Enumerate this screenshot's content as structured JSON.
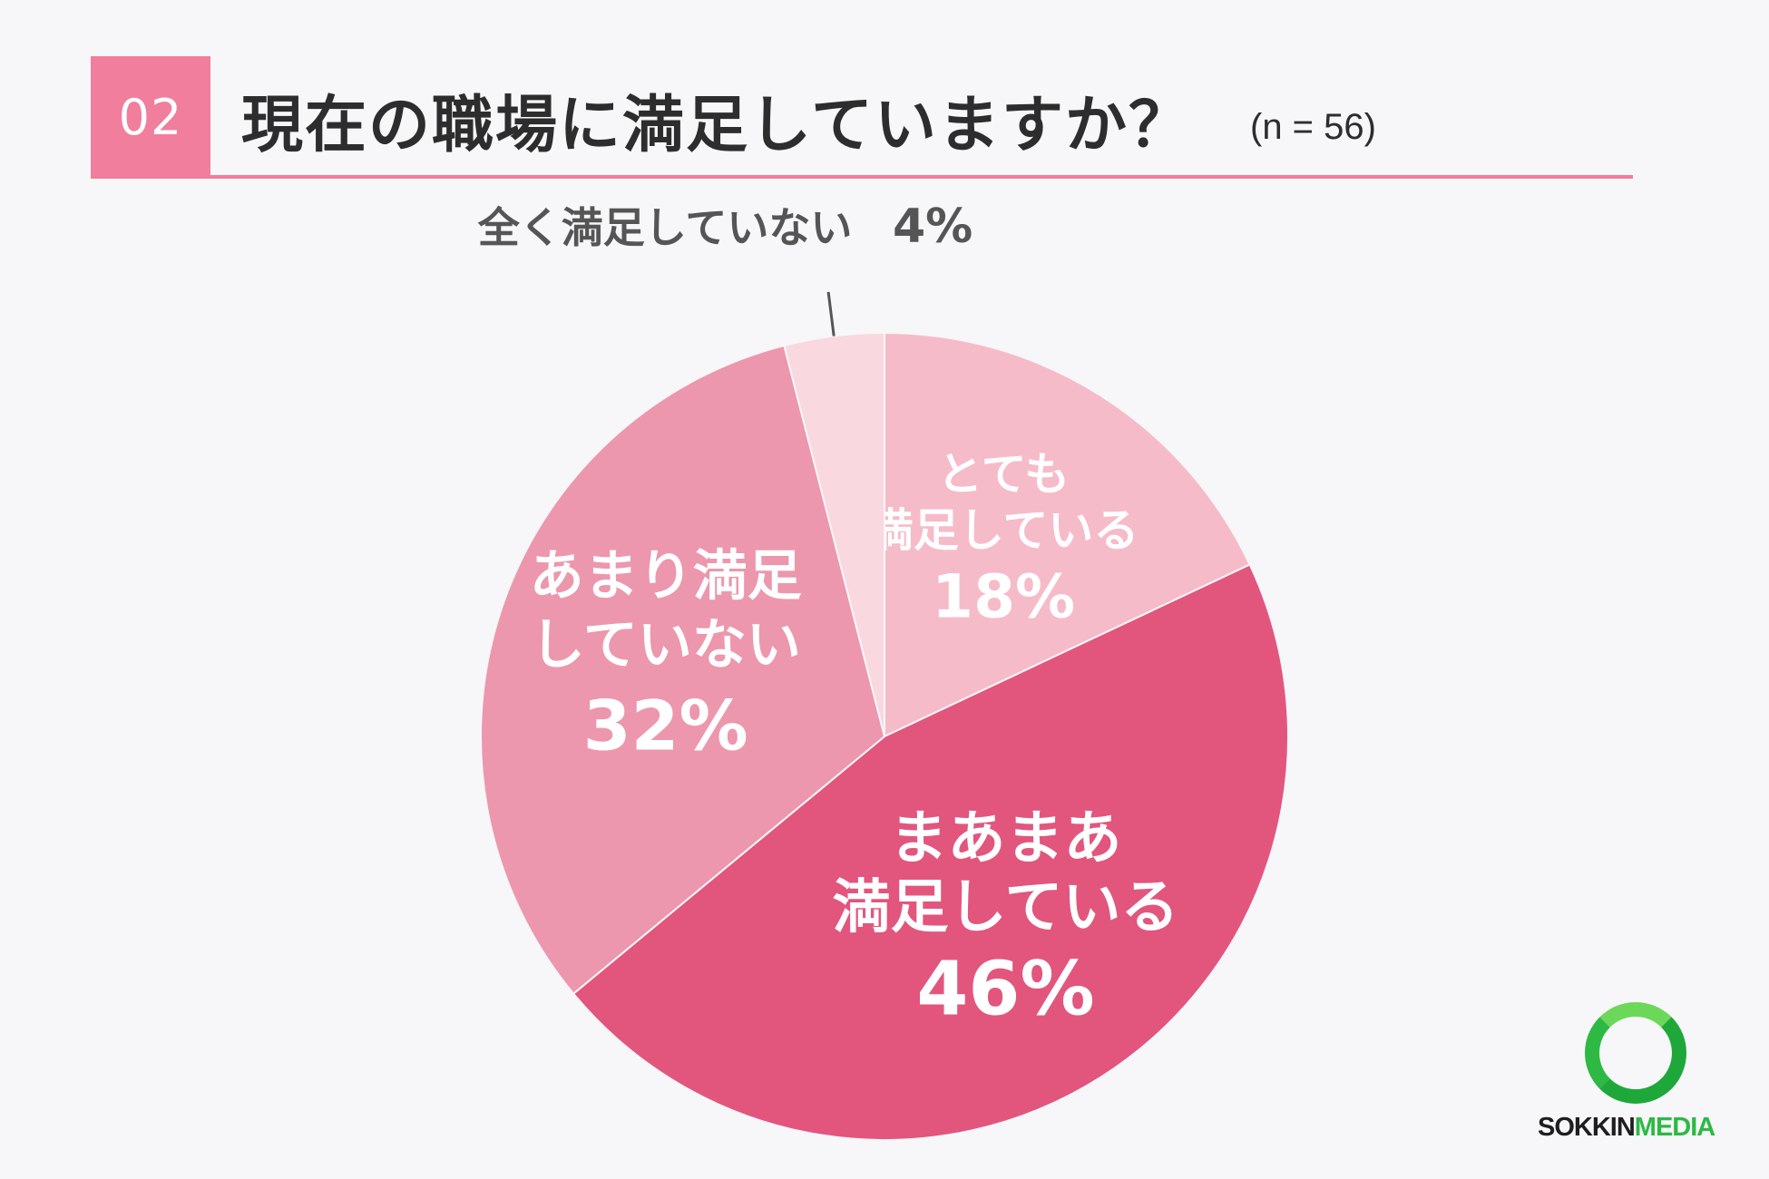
{
  "header": {
    "number": "02",
    "title": "現在の職場に満足していますか？",
    "sample_size": "(n = 56)"
  },
  "chart_data": {
    "type": "pie",
    "title": "現在の職場に満足していますか？",
    "sample_size": "(n = 56)",
    "slices": [
      {
        "label": "とても満足している",
        "label_lines": [
          "とても",
          "満足している"
        ],
        "value": 18,
        "percent_label": "18%",
        "color": "#f6bbc9"
      },
      {
        "label": "まあまあ満足している",
        "label_lines": [
          "まあまあ",
          "満足している"
        ],
        "value": 46,
        "percent_label": "46%",
        "color": "#e2567e"
      },
      {
        "label": "あまり満足していない",
        "label_lines": [
          "あまり満足",
          "していない"
        ],
        "value": 32,
        "percent_label": "32%",
        "color": "#ec97ad"
      },
      {
        "label": "全く満足していない",
        "label_lines": [
          "全く満足していない"
        ],
        "value": 4,
        "percent_label": "4%",
        "color": "#f9d8df"
      }
    ]
  },
  "logo": {
    "text_main": "SOKKIN",
    "text_accent": "MEDIA"
  }
}
